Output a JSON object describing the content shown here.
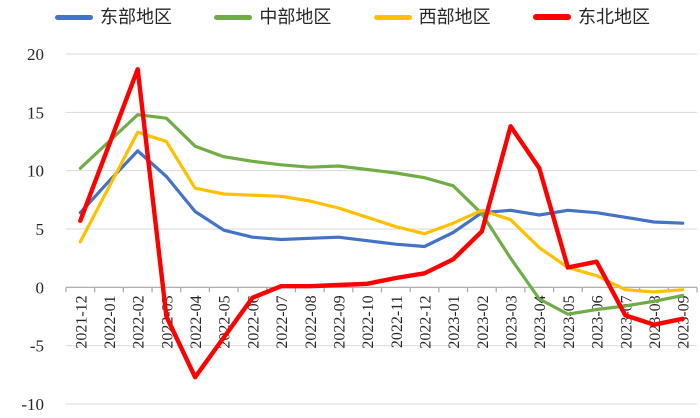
{
  "chart_data": {
    "type": "line",
    "title": "",
    "xlabel": "",
    "ylabel": "",
    "ylim": [
      -10,
      20
    ],
    "y_ticks": [
      20,
      15,
      10,
      5,
      0,
      -5,
      -10
    ],
    "grid": true,
    "legend_position": "top",
    "categories": [
      "2021-12",
      "2022-01",
      "2022-02",
      "2022-03",
      "2022-04",
      "2022-05",
      "2022-06",
      "2022-07",
      "2022-08",
      "2022-09",
      "2022-10",
      "2022-11",
      "2022-12",
      "2023-01",
      "2023-02",
      "2023-03",
      "2023-04",
      "2023-05",
      "2023-06",
      "2023-07",
      "2023-08",
      "2023-09"
    ],
    "series": [
      {
        "name": "东部地区",
        "color": "#4472C4",
        "line_width": 3.2,
        "values": [
          6.4,
          9.1,
          11.7,
          9.5,
          6.5,
          4.9,
          4.3,
          4.1,
          4.2,
          4.3,
          4.0,
          3.7,
          3.5,
          4.7,
          6.4,
          6.6,
          6.2,
          6.6,
          6.4,
          6.0,
          5.6,
          5.5
        ]
      },
      {
        "name": "中部地区",
        "color": "#70AD47",
        "line_width": 3.2,
        "values": [
          10.2,
          12.5,
          14.8,
          14.5,
          12.1,
          11.2,
          10.8,
          10.5,
          10.3,
          10.4,
          10.1,
          9.8,
          9.4,
          8.7,
          6.3,
          2.5,
          -1.0,
          -2.3,
          -1.9,
          -1.6,
          -1.2,
          -0.7
        ]
      },
      {
        "name": "西部地区",
        "color": "#FFC000",
        "line_width": 3.2,
        "values": [
          3.9,
          8.6,
          13.3,
          12.5,
          8.5,
          8.0,
          7.9,
          7.8,
          7.4,
          6.8,
          6.0,
          5.2,
          4.6,
          5.5,
          6.6,
          5.8,
          3.4,
          1.7,
          1.0,
          -0.2,
          -0.4,
          -0.2
        ]
      },
      {
        "name": "东北地区",
        "color": "#FF0000",
        "line_width": 4.4,
        "values": [
          5.7,
          12.2,
          18.7,
          -2.5,
          -7.7,
          -4.3,
          -0.9,
          0.1,
          0.1,
          0.2,
          0.3,
          0.8,
          1.2,
          2.4,
          4.8,
          13.8,
          10.2,
          1.7,
          2.2,
          -2.4,
          -3.2,
          -2.7
        ]
      }
    ],
    "colors": {
      "grid": "#D9D9D9",
      "axis": "#A6A6A6",
      "labels": "#262626",
      "background": "#FFFFFF"
    }
  }
}
